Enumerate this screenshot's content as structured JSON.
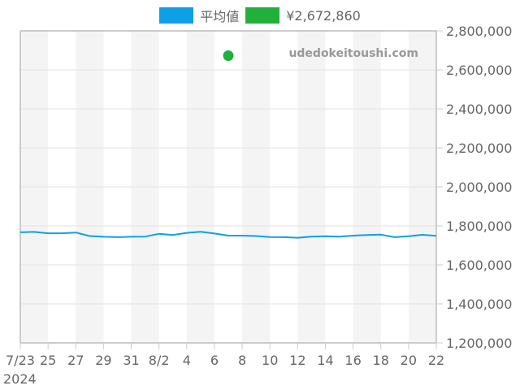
{
  "legend": {
    "items": [
      {
        "label": "平均値",
        "color": "#0ea0e6"
      },
      {
        "label": "¥2,672,860",
        "color": "#22b03c"
      }
    ]
  },
  "watermark": "udedokeitoushi.com",
  "chart_data": {
    "type": "line",
    "title": "",
    "xlabel": "",
    "ylabel": "",
    "x_tick_labels": [
      "7/23",
      "25",
      "27",
      "29",
      "31",
      "8/2",
      "4",
      "6",
      "8",
      "10",
      "12",
      "14",
      "16",
      "18",
      "20",
      "22"
    ],
    "x_year_label": "2024",
    "y_tick_labels": [
      "1,200,000",
      "1,400,000",
      "1,600,000",
      "1,800,000",
      "2,000,000",
      "2,200,000",
      "2,400,000",
      "2,600,000",
      "2,800,000"
    ],
    "ylim": [
      1200000,
      2800000
    ],
    "x_range": [
      "2024-07-23",
      "2024-08-22"
    ],
    "grid": true,
    "legend_position": "top",
    "y_axis_position": "right",
    "series": [
      {
        "name": "平均値",
        "type": "line",
        "color": "#0ea0e6",
        "x": [
          "7/23",
          "7/24",
          "7/25",
          "7/26",
          "7/27",
          "7/28",
          "7/29",
          "7/30",
          "7/31",
          "8/1",
          "8/2",
          "8/3",
          "8/4",
          "8/5",
          "8/6",
          "8/7",
          "8/8",
          "8/9",
          "8/10",
          "8/11",
          "8/12",
          "8/13",
          "8/14",
          "8/15",
          "8/16",
          "8/17",
          "8/18",
          "8/19",
          "8/20",
          "8/21",
          "8/22"
        ],
        "values": [
          1767000,
          1769000,
          1762000,
          1762000,
          1766000,
          1748000,
          1744000,
          1742000,
          1744000,
          1745000,
          1759000,
          1753000,
          1764000,
          1770000,
          1761000,
          1750000,
          1750000,
          1748000,
          1743000,
          1742000,
          1739000,
          1745000,
          1747000,
          1745000,
          1750000,
          1753000,
          1755000,
          1742000,
          1747000,
          1754000,
          1749000
        ]
      },
      {
        "name": "¥2,672,860",
        "type": "scatter",
        "color": "#22b03c",
        "x": [
          "8/7"
        ],
        "values": [
          2672860
        ]
      }
    ]
  }
}
